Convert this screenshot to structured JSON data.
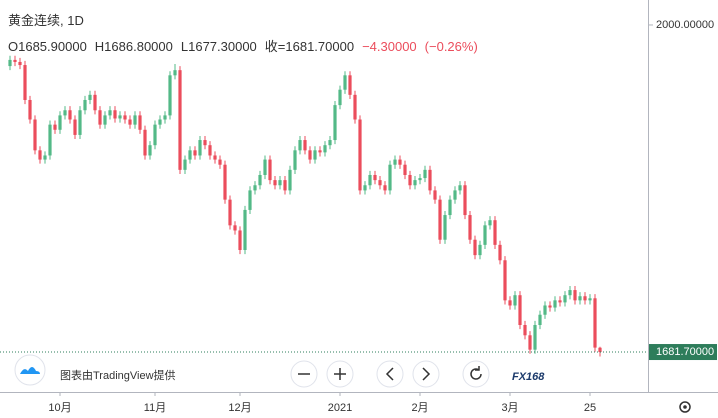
{
  "chart_data": {
    "type": "candlestick",
    "title": "黄金连续, 1D",
    "ohlc_labels": [
      "O1685.90000",
      "H1686.80000",
      "L1677.30000",
      "收=1681.70000",
      "−4.30000",
      "(−0.26%)"
    ],
    "credit": "图表由TradingView提供",
    "watermark": "FX168",
    "categories": [
      null,
      null,
      null,
      null,
      null,
      null,
      null,
      null,
      null,
      null,
      "10月",
      null,
      null,
      null,
      null,
      null,
      null,
      null,
      null,
      null,
      null,
      null,
      null,
      null,
      null,
      null,
      null,
      null,
      null,
      "11月",
      null,
      null,
      null,
      null,
      null,
      null,
      null,
      null,
      null,
      null,
      null,
      null,
      null,
      null,
      null,
      null,
      "12月",
      null,
      null,
      null,
      null,
      null,
      null,
      null,
      null,
      null,
      null,
      null,
      null,
      null,
      null,
      null,
      null,
      null,
      null,
      null,
      "2021",
      null,
      null,
      null,
      null,
      null,
      null,
      null,
      null,
      null,
      null,
      null,
      null,
      null,
      null,
      null,
      "2月",
      null,
      null,
      null,
      null,
      null,
      null,
      null,
      null,
      null,
      null,
      null,
      null,
      null,
      null,
      null,
      null,
      null,
      "3月",
      null,
      null,
      null,
      null,
      null,
      null,
      null,
      null,
      null,
      null,
      null,
      null,
      null,
      null,
      null,
      "25",
      null,
      null
    ],
    "open": [
      1960,
      1966,
      1964,
      1961,
      1927,
      1908,
      1878,
      1869,
      1873,
      1903,
      1898,
      1912,
      1917,
      1908,
      1893,
      1917,
      1927,
      1932,
      1917,
      1903,
      1912,
      1917,
      1909,
      1912,
      1908,
      1903,
      1912,
      1898,
      1873,
      1883,
      1903,
      1908,
      1912,
      1951,
      1956,
      1859,
      1869,
      1878,
      1873,
      1888,
      1883,
      1873,
      1869,
      1864,
      1830,
      1805,
      1800,
      1781,
      1820,
      1839,
      1844,
      1854,
      1869,
      1849,
      1844,
      1849,
      1839,
      1859,
      1878,
      1888,
      1878,
      1869,
      1878,
      1876,
      1883,
      1888,
      1922,
      1937,
      1951,
      1932,
      1908,
      1839,
      1844,
      1854,
      1849,
      1844,
      1839,
      1864,
      1869,
      1864,
      1854,
      1844,
      1849,
      1851,
      1859,
      1839,
      1830,
      1791,
      1815,
      1830,
      1839,
      1844,
      1815,
      1791,
      1776,
      1786,
      1805,
      1810,
      1786,
      1771,
      1732,
      1727,
      1737,
      1708,
      1698,
      1684,
      1708,
      1718,
      1727,
      1725,
      1732,
      1730,
      1737,
      1742,
      1732,
      1736,
      1732,
      1734,
      1685.9
    ],
    "high": [
      1970,
      1970,
      1968,
      1965,
      1931,
      1912,
      1882,
      1877,
      1907,
      1907,
      1916,
      1921,
      1921,
      1912,
      1921,
      1931,
      1936,
      1936,
      1921,
      1916,
      1921,
      1921,
      1916,
      1916,
      1912,
      1916,
      1916,
      1902,
      1887,
      1907,
      1912,
      1916,
      1955,
      1962,
      1960,
      1873,
      1882,
      1882,
      1892,
      1892,
      1887,
      1877,
      1873,
      1868,
      1834,
      1809,
      1804,
      1824,
      1843,
      1848,
      1858,
      1873,
      1873,
      1853,
      1853,
      1853,
      1863,
      1882,
      1892,
      1892,
      1882,
      1882,
      1882,
      1887,
      1892,
      1926,
      1941,
      1955,
      1955,
      1936,
      1912,
      1848,
      1858,
      1858,
      1853,
      1848,
      1868,
      1873,
      1873,
      1868,
      1858,
      1853,
      1855,
      1863,
      1863,
      1843,
      1834,
      1819,
      1834,
      1843,
      1848,
      1848,
      1819,
      1795,
      1790,
      1809,
      1814,
      1814,
      1790,
      1775,
      1736,
      1741,
      1741,
      1712,
      1702,
      1712,
      1722,
      1731,
      1731,
      1736,
      1736,
      1741,
      1746,
      1746,
      1740,
      1740,
      1738,
      1738,
      1686.8
    ],
    "low": [
      1956,
      1960,
      1957,
      1923,
      1904,
      1874,
      1865,
      1865,
      1869,
      1894,
      1894,
      1908,
      1904,
      1889,
      1889,
      1913,
      1923,
      1913,
      1899,
      1899,
      1908,
      1905,
      1905,
      1904,
      1899,
      1899,
      1894,
      1869,
      1869,
      1879,
      1899,
      1904,
      1908,
      1947,
      1855,
      1855,
      1865,
      1869,
      1869,
      1879,
      1869,
      1865,
      1860,
      1826,
      1801,
      1796,
      1777,
      1777,
      1816,
      1835,
      1840,
      1850,
      1845,
      1840,
      1840,
      1835,
      1835,
      1855,
      1874,
      1874,
      1865,
      1865,
      1872,
      1872,
      1879,
      1884,
      1918,
      1933,
      1928,
      1904,
      1835,
      1835,
      1840,
      1845,
      1840,
      1835,
      1835,
      1860,
      1860,
      1850,
      1840,
      1840,
      1845,
      1847,
      1835,
      1826,
      1787,
      1787,
      1811,
      1826,
      1835,
      1811,
      1787,
      1772,
      1772,
      1782,
      1801,
      1782,
      1767,
      1728,
      1723,
      1723,
      1704,
      1694,
      1680,
      1680,
      1704,
      1714,
      1721,
      1721,
      1726,
      1726,
      1733,
      1728,
      1728,
      1728,
      1728,
      1682,
      1677.3
    ],
    "close": [
      1966,
      1964,
      1961,
      1927,
      1908,
      1878,
      1869,
      1873,
      1903,
      1898,
      1912,
      1917,
      1908,
      1893,
      1917,
      1927,
      1932,
      1917,
      1903,
      1912,
      1917,
      1909,
      1912,
      1908,
      1903,
      1912,
      1898,
      1873,
      1883,
      1903,
      1908,
      1912,
      1951,
      1956,
      1859,
      1869,
      1878,
      1873,
      1888,
      1883,
      1873,
      1869,
      1864,
      1830,
      1805,
      1800,
      1781,
      1820,
      1839,
      1844,
      1854,
      1869,
      1849,
      1844,
      1849,
      1839,
      1859,
      1878,
      1888,
      1878,
      1869,
      1878,
      1876,
      1883,
      1888,
      1922,
      1937,
      1951,
      1932,
      1908,
      1839,
      1844,
      1854,
      1849,
      1844,
      1839,
      1864,
      1869,
      1864,
      1854,
      1844,
      1849,
      1851,
      1859,
      1839,
      1830,
      1791,
      1815,
      1830,
      1839,
      1844,
      1815,
      1791,
      1776,
      1786,
      1805,
      1810,
      1786,
      1771,
      1732,
      1727,
      1737,
      1708,
      1698,
      1684,
      1708,
      1718,
      1727,
      1725,
      1732,
      1730,
      1737,
      1742,
      1732,
      1736,
      1732,
      1734,
      1686,
      1681.7
    ],
    "up_color": "#53b987",
    "down_color": "#eb4d5c",
    "last_price": {
      "value": 1681.7,
      "label": "1681.70000",
      "color": "#2e7d5b"
    },
    "ylim": [
      1642.8,
      2024.3
    ],
    "yticks": [
      {
        "value": 2000,
        "label": "2000.00000"
      }
    ],
    "grid": false
  }
}
